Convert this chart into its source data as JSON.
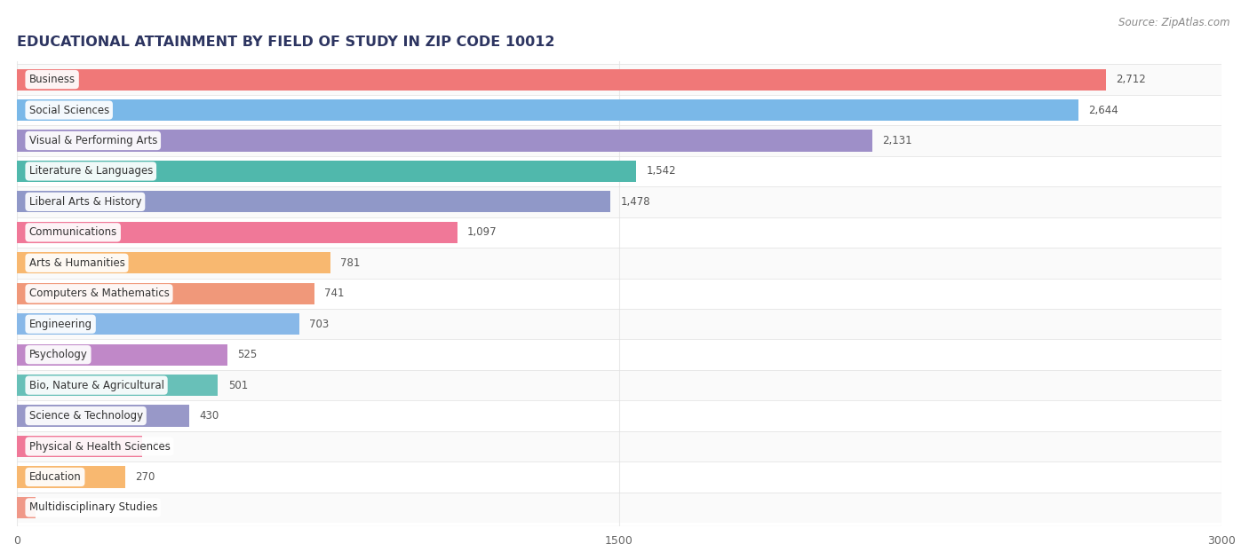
{
  "title": "EDUCATIONAL ATTAINMENT BY FIELD OF STUDY IN ZIP CODE 10012",
  "source": "Source: ZipAtlas.com",
  "categories": [
    "Business",
    "Social Sciences",
    "Visual & Performing Arts",
    "Literature & Languages",
    "Liberal Arts & History",
    "Communications",
    "Arts & Humanities",
    "Computers & Mathematics",
    "Engineering",
    "Psychology",
    "Bio, Nature & Agricultural",
    "Science & Technology",
    "Physical & Health Sciences",
    "Education",
    "Multidisciplinary Studies"
  ],
  "values": [
    2712,
    2644,
    2131,
    1542,
    1478,
    1097,
    781,
    741,
    703,
    525,
    501,
    430,
    311,
    270,
    46
  ],
  "bar_colors": [
    "#F07878",
    "#7AB8E8",
    "#9E8FC8",
    "#50B8AC",
    "#9098C8",
    "#F07898",
    "#F8B870",
    "#F0987A",
    "#88B8E8",
    "#C088C8",
    "#68C0B8",
    "#9898C8",
    "#F07898",
    "#F8B870",
    "#F09888"
  ],
  "xlim": [
    0,
    3000
  ],
  "xticks": [
    0,
    1500,
    3000
  ],
  "title_fontsize": 11.5,
  "source_fontsize": 8.5,
  "label_fontsize": 8.5,
  "value_fontsize": 8.5,
  "background_color": "#ffffff",
  "bar_height": 0.7,
  "grid_color": "#e8e8e8",
  "row_bg_color": "#f5f5f5",
  "separator_color": "#e0e0e0"
}
